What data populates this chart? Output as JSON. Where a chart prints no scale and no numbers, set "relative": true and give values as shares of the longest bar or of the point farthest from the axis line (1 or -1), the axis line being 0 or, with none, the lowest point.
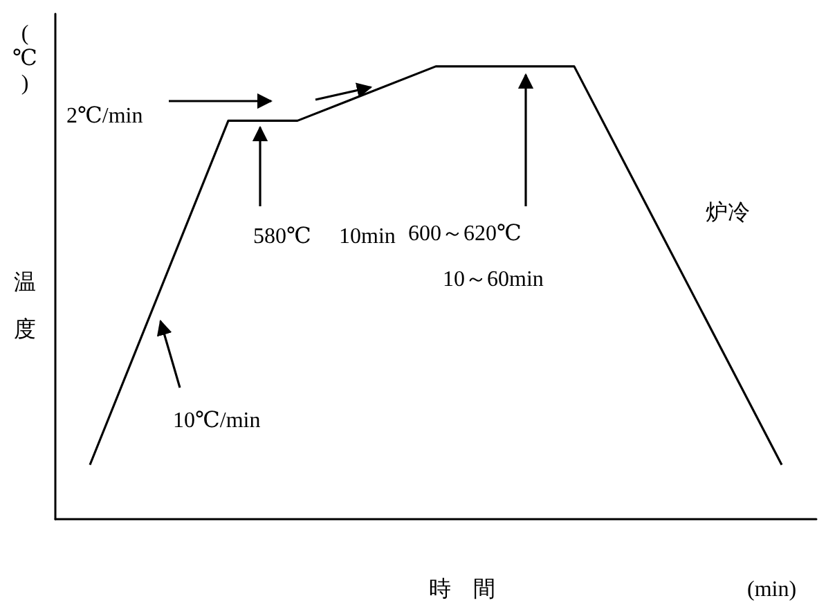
{
  "chart_data": {
    "type": "line",
    "relative": true,
    "xlabel": "時　間",
    "ylabel": "温度",
    "categories": [
      null,
      null,
      null,
      null,
      null,
      null,
      null,
      null,
      null,
      null,
      null
    ],
    "series": [
      {
        "color": "#000000",
        "values": [
          0.12,
          null,
          0.88,
          0.88,
          null,
          1,
          null,
          1,
          null,
          null,
          0.12
        ]
      }
    ],
    "marker": "none",
    "line_style": "solid",
    "grid": false,
    "annotations": [
      "(℃)",
      "(min)",
      "2℃/min",
      "580℃",
      "10min",
      "600～620℃",
      "10～60min",
      "炉冷",
      "10℃/min"
    ]
  }
}
